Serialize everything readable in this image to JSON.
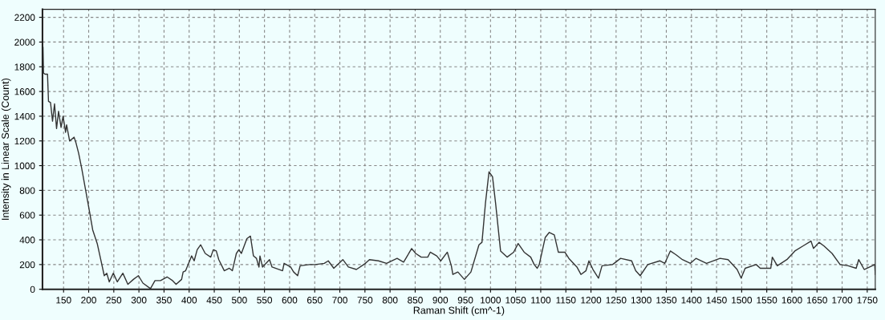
{
  "chart_data": {
    "type": "line",
    "xlabel": "Raman Shift (cm^-1)",
    "ylabel": "Intensity in Linear Scale (Count)",
    "xlim": [
      108,
      1766
    ],
    "ylim": [
      0,
      2265
    ],
    "xticks": [
      150,
      200,
      250,
      300,
      350,
      400,
      450,
      500,
      550,
      600,
      650,
      700,
      750,
      800,
      850,
      900,
      950,
      1000,
      1050,
      1100,
      1150,
      1200,
      1250,
      1300,
      1350,
      1400,
      1450,
      1500,
      1550,
      1600,
      1650,
      1700,
      1750
    ],
    "yticks": [
      0,
      200,
      400,
      600,
      800,
      1000,
      1200,
      1400,
      1600,
      1800,
      2000,
      2200
    ],
    "grid": true,
    "marker": "none",
    "line_style": "solid",
    "series": [
      {
        "color": "#333333",
        "x": [
          108,
          109,
          110,
          113,
          118,
          120,
          124,
          128,
          132,
          136,
          140,
          145,
          149,
          154,
          156,
          162,
          171,
          175,
          180,
          186,
          194,
          202,
          208,
          217,
          224,
          231,
          236,
          241,
          249,
          257,
          268,
          278,
          289,
          299,
          308,
          323,
          332,
          343,
          356,
          367,
          374,
          385,
          388,
          393,
          399,
          405,
          410,
          416,
          423,
          432,
          443,
          448,
          454,
          459,
          470,
          480,
          486,
          494,
          499,
          504,
          515,
          522,
          528,
          534,
          539,
          541,
          546,
          560,
          565,
          586,
          589,
          602,
          608,
          616,
          621,
          640,
          651,
          669,
          677,
          688,
          706,
          717,
          733,
          751,
          759,
          777,
          793,
          814,
          827,
          843,
          851,
          862,
          875,
          880,
          893,
          901,
          914,
          922,
          925,
          935,
          948,
          961,
          977,
          983,
          990,
          997,
          1004,
          1010,
          1020,
          1033,
          1046,
          1055,
          1067,
          1080,
          1087,
          1093,
          1097,
          1109,
          1117,
          1127,
          1135,
          1148,
          1156,
          1172,
          1180,
          1190,
          1196,
          1204,
          1215,
          1222,
          1243,
          1259,
          1281,
          1289,
          1298,
          1313,
          1337,
          1347,
          1358,
          1369,
          1382,
          1398,
          1409,
          1430,
          1457,
          1473,
          1491,
          1499,
          1507,
          1529,
          1537,
          1558,
          1561,
          1571,
          1590,
          1606,
          1622,
          1638,
          1643,
          1654,
          1664,
          1680,
          1696,
          1712,
          1728,
          1733,
          1744,
          1765,
          1766
        ],
        "values": [
          1750,
          1960,
          1750,
          1740,
          1740,
          1520,
          1510,
          1360,
          1500,
          1300,
          1440,
          1310,
          1400,
          1270,
          1330,
          1200,
          1230,
          1180,
          1100,
          980,
          800,
          620,
          480,
          370,
          240,
          110,
          130,
          60,
          130,
          60,
          130,
          40,
          80,
          110,
          50,
          5,
          70,
          70,
          100,
          70,
          40,
          80,
          140,
          150,
          210,
          270,
          230,
          320,
          360,
          290,
          260,
          320,
          310,
          240,
          150,
          170,
          150,
          290,
          320,
          290,
          410,
          430,
          270,
          250,
          180,
          270,
          180,
          240,
          180,
          150,
          210,
          180,
          140,
          110,
          190,
          200,
          200,
          210,
          230,
          170,
          240,
          180,
          160,
          210,
          240,
          230,
          210,
          250,
          220,
          330,
          290,
          260,
          260,
          300,
          270,
          230,
          300,
          190,
          120,
          140,
          80,
          140,
          360,
          380,
          700,
          950,
          910,
          700,
          310,
          260,
          300,
          370,
          300,
          260,
          200,
          170,
          200,
          420,
          460,
          440,
          300,
          300,
          250,
          180,
          120,
          150,
          230,
          160,
          90,
          190,
          200,
          250,
          230,
          150,
          110,
          200,
          230,
          210,
          310,
          280,
          240,
          210,
          250,
          210,
          250,
          240,
          160,
          90,
          170,
          200,
          170,
          170,
          260,
          190,
          240,
          310,
          350,
          390,
          330,
          380,
          350,
          290,
          200,
          190,
          170,
          240,
          160,
          200,
          120
        ]
      }
    ]
  }
}
